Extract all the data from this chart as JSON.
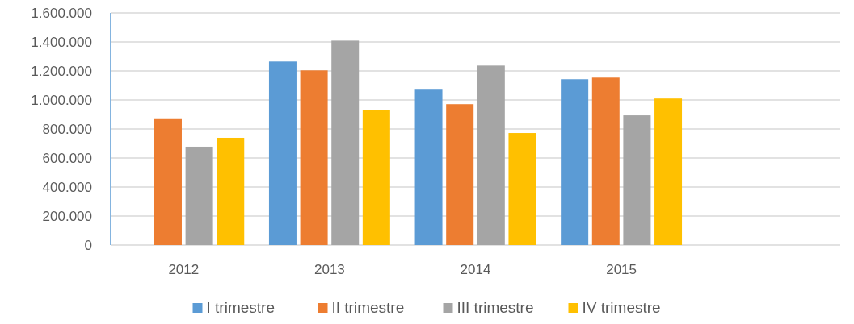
{
  "chart_data": {
    "type": "bar",
    "categories": [
      "2012",
      "2013",
      "2014",
      "2015",
      null
    ],
    "series": [
      {
        "name": "I trimestre",
        "color": "#5b9bd5",
        "values": [
          null,
          1265000,
          1071000,
          1143000,
          null
        ]
      },
      {
        "name": "II trimestre",
        "color": "#ed7d31",
        "values": [
          868000,
          1204000,
          971000,
          1154000,
          null
        ]
      },
      {
        "name": "III trimestre",
        "color": "#a5a5a5",
        "values": [
          678000,
          1409000,
          1237000,
          894000,
          null
        ]
      },
      {
        "name": "IV trimestre",
        "color": "#ffc000",
        "values": [
          739000,
          933000,
          772000,
          1010000,
          null
        ]
      }
    ],
    "ylim": [
      0,
      1600000
    ],
    "yticks": [
      0,
      {
        "value": 200000,
        "label": "200.000"
      },
      {
        "value": 400000,
        "label": "400.000"
      },
      {
        "value": 600000,
        "label": "600.000"
      },
      {
        "value": 800000,
        "label": "800.000"
      },
      {
        "value": 1000000,
        "label": "1.000.000"
      },
      {
        "value": 1200000,
        "label": "1.200.000"
      },
      {
        "value": 1400000,
        "label": "1.400.000"
      },
      {
        "value": 1600000,
        "label": "1.600.000"
      }
    ],
    "grid": "y",
    "legend": "bottom"
  }
}
